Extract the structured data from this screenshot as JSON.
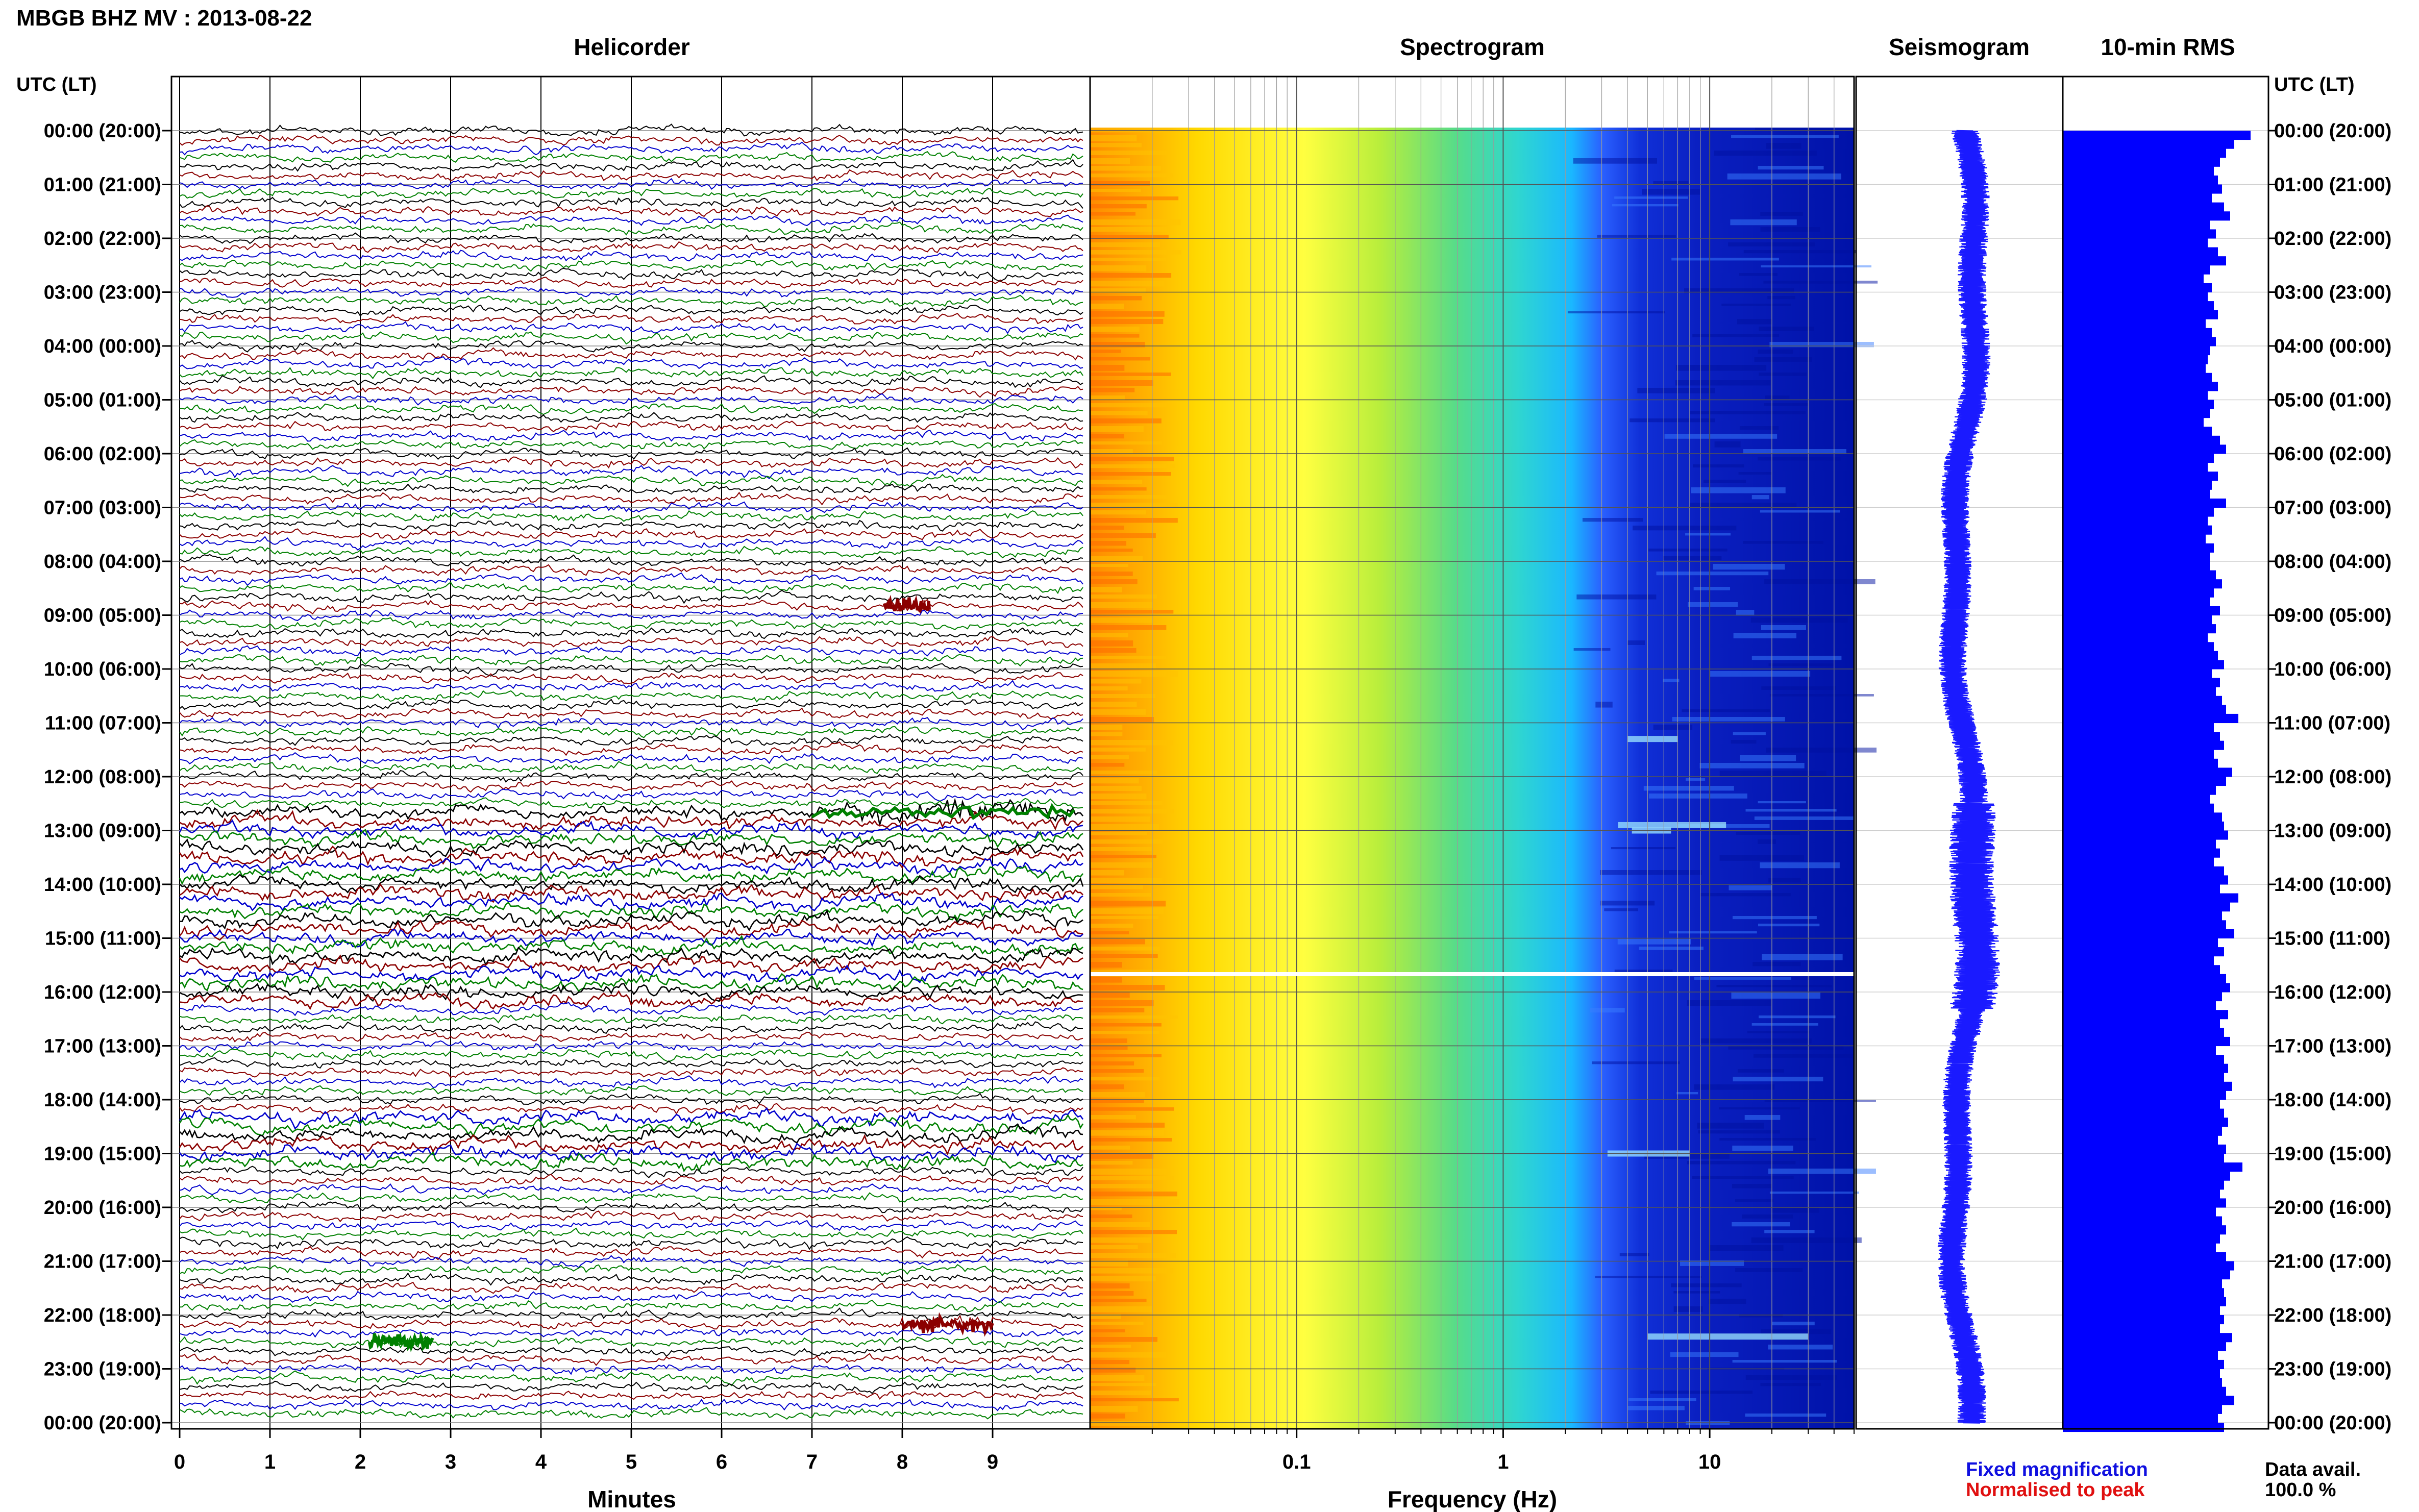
{
  "header": {
    "title": "MBGB BHZ MV : 2013-08-22"
  },
  "panels": {
    "helicorder": "Helicorder",
    "spectrogram": "Spectrogram",
    "seismogram": "Seismogram",
    "rms": "10-min RMS"
  },
  "axes": {
    "time_label": "UTC (LT)",
    "helicorder_xlabel": "Minutes",
    "spectrogram_xlabel": "Frequency (Hz)"
  },
  "legend": {
    "fixed": "Fixed magnification",
    "normalised": "Normalised to peak"
  },
  "availability": {
    "label": "Data avail.",
    "value": "100.0 %"
  },
  "colors": {
    "trace_cycle": [
      "#000000",
      "#8b0000",
      "#0000cd",
      "#008000"
    ],
    "seismogram": "#1a1aff",
    "rms": "#0000ff",
    "spectrogram_gap": "#ffffff"
  },
  "chart_data": [
    {
      "type": "line",
      "name": "helicorder",
      "title": "Helicorder",
      "xlabel": "Minutes",
      "ylabel": "UTC (LT)",
      "xlim": [
        0,
        10
      ],
      "x_ticks": [
        "0",
        "1",
        "2",
        "3",
        "4",
        "5",
        "6",
        "7",
        "8",
        "9"
      ],
      "y_ticks": [
        "00:00 (20:00)",
        "01:00 (21:00)",
        "02:00 (22:00)",
        "03:00 (23:00)",
        "04:00 (00:00)",
        "05:00 (01:00)",
        "06:00 (02:00)",
        "07:00 (03:00)",
        "08:00 (04:00)",
        "09:00 (05:00)",
        "10:00 (06:00)",
        "11:00 (07:00)",
        "12:00 (08:00)",
        "13:00 (09:00)",
        "14:00 (10:00)",
        "15:00 (11:00)",
        "16:00 (12:00)",
        "17:00 (13:00)",
        "18:00 (14:00)",
        "19:00 (15:00)",
        "20:00 (16:00)",
        "21:00 (17:00)",
        "22:00 (18:00)",
        "23:00 (19:00)",
        "00:00 (20:00)"
      ],
      "lines_per_hour": 6,
      "grid": true,
      "events": [
        {
          "hour": 12.67,
          "minute_start": 7.0,
          "minute_end": 9.9,
          "color": "#008000"
        },
        {
          "hour": 8.83,
          "minute_start": 7.8,
          "minute_end": 8.3,
          "color": "#8b0000"
        },
        {
          "hour": 22.17,
          "minute_start": 8.0,
          "minute_end": 9.0,
          "color": "#8b0000"
        },
        {
          "hour": 22.5,
          "minute_start": 2.1,
          "minute_end": 2.8,
          "color": "#008000"
        }
      ]
    },
    {
      "type": "heatmap",
      "name": "spectrogram",
      "title": "Spectrogram",
      "xlabel": "Frequency (Hz)",
      "xscale": "log",
      "xlim": [
        0.01,
        50
      ],
      "x_ticks": [
        "0.1",
        "1",
        "10"
      ],
      "ylim_hours": [
        0,
        24
      ],
      "colormap": [
        "#ff7f00",
        "#ffd400",
        "#ffff33",
        "#8fe34a",
        "#2fd6c8",
        "#19b4ff",
        "#1f5bff",
        "#0015b0"
      ],
      "gap_hour": 15.6,
      "grid": true
    },
    {
      "type": "line",
      "name": "seismogram",
      "title": "Seismogram",
      "ylim_hours": [
        0,
        24
      ],
      "color": "#1a1aff"
    },
    {
      "type": "bar",
      "name": "rms",
      "title": "10-min RMS",
      "orientation": "horizontal",
      "color": "#0000ff",
      "values": [
        0.92,
        0.84,
        0.8,
        0.77,
        0.74,
        0.76,
        0.78,
        0.73,
        0.79,
        0.82,
        0.72,
        0.75,
        0.71,
        0.76,
        0.8,
        0.72,
        0.69,
        0.73,
        0.71,
        0.74,
        0.76,
        0.7,
        0.73,
        0.75,
        0.72,
        0.71,
        0.7,
        0.73,
        0.76,
        0.71,
        0.74,
        0.72,
        0.69,
        0.73,
        0.77,
        0.8,
        0.74,
        0.71,
        0.76,
        0.73,
        0.72,
        0.8,
        0.74,
        0.71,
        0.73,
        0.7,
        0.74,
        0.72,
        0.72,
        0.75,
        0.78,
        0.74,
        0.72,
        0.77,
        0.73,
        0.75,
        0.71,
        0.74,
        0.76,
        0.79,
        0.73,
        0.77,
        0.75,
        0.78,
        0.8,
        0.86,
        0.74,
        0.77,
        0.79,
        0.74,
        0.76,
        0.83,
        0.8,
        0.75,
        0.72,
        0.74,
        0.78,
        0.79,
        0.81,
        0.75,
        0.77,
        0.74,
        0.79,
        0.81,
        0.77,
        0.86,
        0.82,
        0.78,
        0.8,
        0.84,
        0.76,
        0.79,
        0.74,
        0.77,
        0.8,
        0.82,
        0.78,
        0.75,
        0.81,
        0.77,
        0.79,
        0.82,
        0.75,
        0.79,
        0.81,
        0.79,
        0.83,
        0.8,
        0.77,
        0.79,
        0.81,
        0.78,
        0.76,
        0.8,
        0.79,
        0.88,
        0.82,
        0.79,
        0.77,
        0.8,
        0.75,
        0.78,
        0.8,
        0.77,
        0.75,
        0.8,
        0.84,
        0.82,
        0.78,
        0.79,
        0.8,
        0.77,
        0.79,
        0.77,
        0.83,
        0.8,
        0.76,
        0.79,
        0.77,
        0.78,
        0.8,
        0.84,
        0.78,
        0.76,
        0.79
      ]
    }
  ]
}
